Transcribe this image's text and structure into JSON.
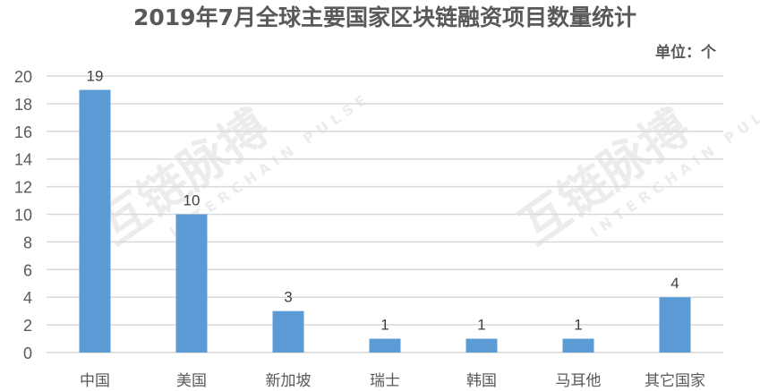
{
  "chart_data": {
    "type": "bar",
    "title": "2019年7月全球主要国家区块链融资项目数量统计",
    "unit_label": "单位：个",
    "categories": [
      "中国",
      "美国",
      "新加坡",
      "瑞士",
      "韩国",
      "马耳他",
      "其它国家"
    ],
    "values": [
      19,
      10,
      3,
      1,
      1,
      1,
      4
    ],
    "ylim": [
      0,
      20
    ],
    "yticks": [
      0,
      2,
      4,
      6,
      8,
      10,
      12,
      14,
      16,
      18,
      20
    ],
    "grid": true,
    "data_labels": true,
    "bar_color": "#5b9bd5",
    "grid_color": "#d9d9d9"
  },
  "watermark": {
    "text": "互链脉搏",
    "subtext": "INTERCHAIN PULSE"
  }
}
